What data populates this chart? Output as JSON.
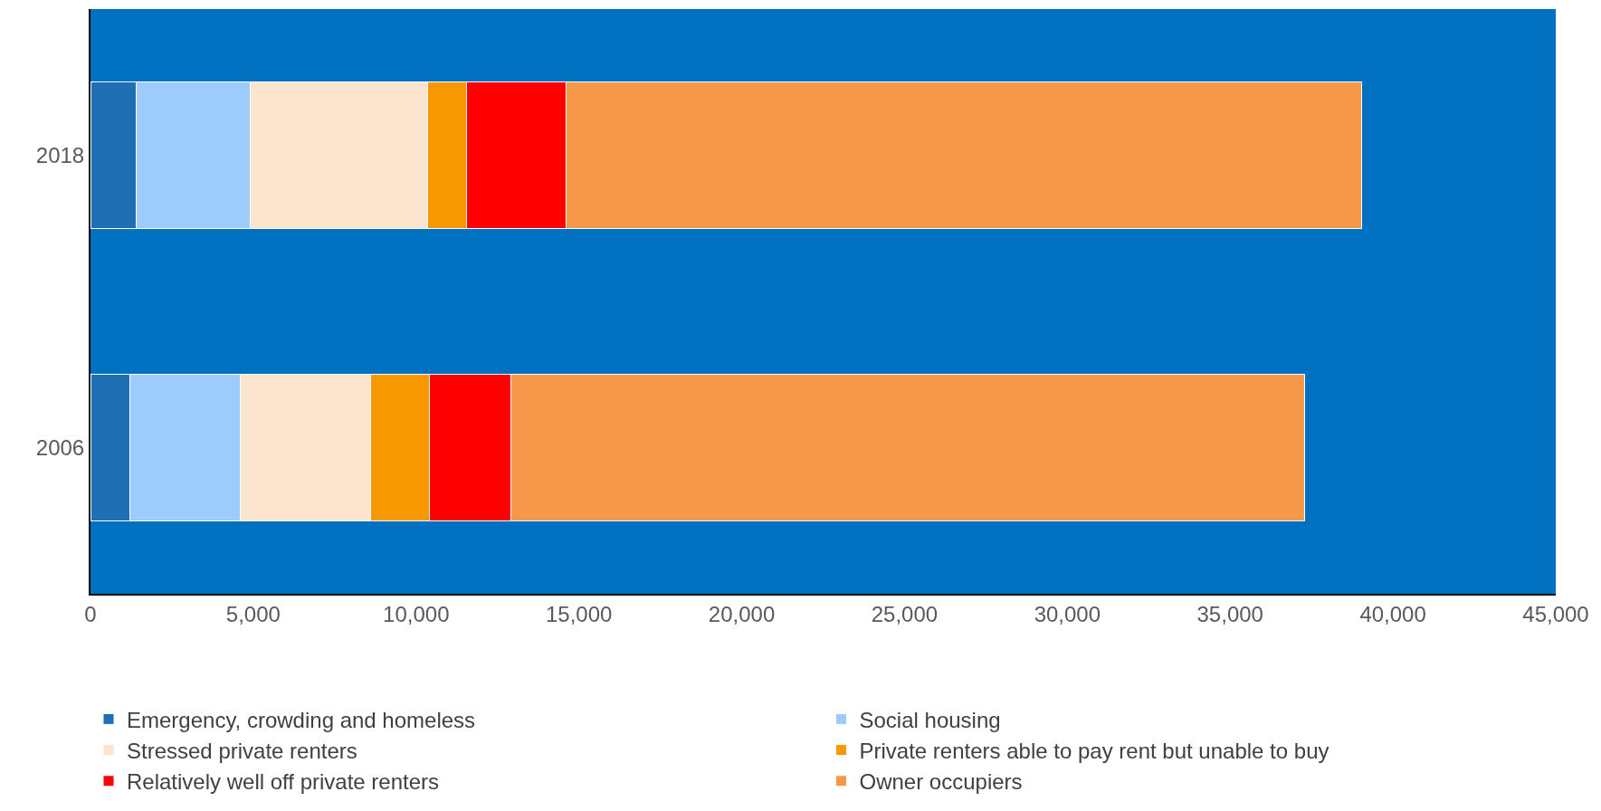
{
  "chart_data": {
    "type": "bar",
    "orientation": "horizontal",
    "stacked": true,
    "categories": [
      "2018",
      "2006"
    ],
    "xlim": [
      0,
      45000
    ],
    "xticks": [
      {
        "value": 0,
        "label": "0"
      },
      {
        "value": 5000,
        "label": "5,000"
      },
      {
        "value": 10000,
        "label": "10,000"
      },
      {
        "value": 15000,
        "label": "15,000"
      },
      {
        "value": 20000,
        "label": "20,000"
      },
      {
        "value": 25000,
        "label": "25,000"
      },
      {
        "value": 30000,
        "label": "30,000"
      },
      {
        "value": 35000,
        "label": "35,000"
      },
      {
        "value": 40000,
        "label": "40,000"
      },
      {
        "value": 45000,
        "label": "45,000"
      }
    ],
    "grid": false,
    "legend": "bottom",
    "series": [
      {
        "name": "Emergency, crowding and homeless",
        "color": "#1f6fb5",
        "values": [
          1400,
          1200
        ]
      },
      {
        "name": "Social housing",
        "color": "#9dcbfa",
        "values": [
          3500,
          3400
        ]
      },
      {
        "name": "Stressed private renters",
        "color": "#fce4cf",
        "values": [
          5450,
          4000
        ]
      },
      {
        "name": "Private renters able to pay rent but unable to buy",
        "color": "#f79800",
        "values": [
          1200,
          1800
        ]
      },
      {
        "name": "Relatively well off private renters",
        "color": "#ff0000",
        "values": [
          3050,
          2500
        ]
      },
      {
        "name": "Owner occupiers",
        "color": "#f5984a",
        "values": [
          24450,
          24400
        ]
      }
    ]
  }
}
